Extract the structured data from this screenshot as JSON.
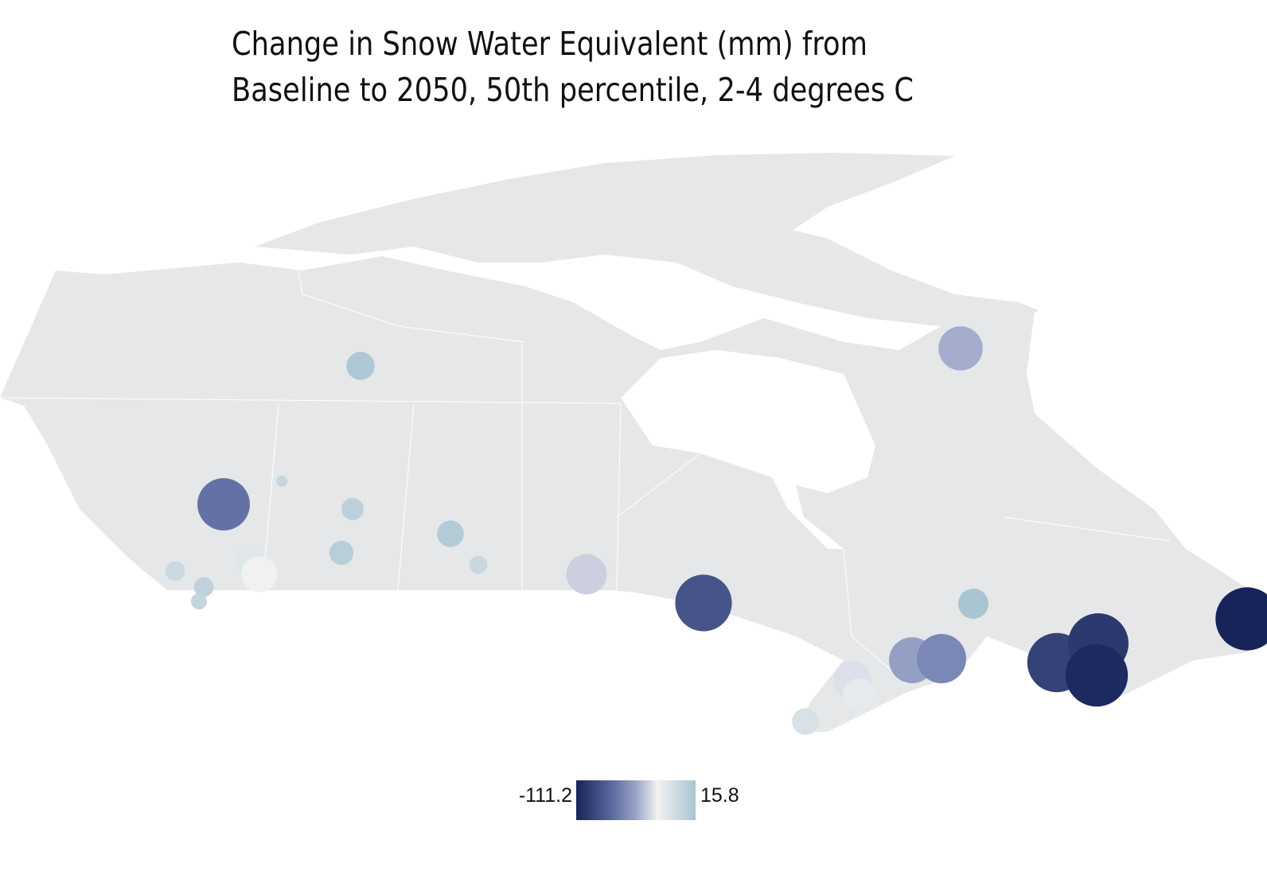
{
  "title": {
    "line1": "Change in Snow Water Equivalent (mm) from",
    "line2": "Baseline to 2050, 50th percentile, 2-4 degrees C"
  },
  "legend": {
    "min_label": "-111.2",
    "max_label": "15.8",
    "min": -111.2,
    "max": 15.8,
    "colors": [
      "#17245a",
      "#5b6aa0",
      "#9aa4c8",
      "#f2f2f2",
      "#a8c4d2"
    ]
  },
  "map": {
    "land_color": "#e6e7e8",
    "border_color": "#ffffff"
  },
  "stations": [
    {
      "value": 12
    },
    {
      "value": -45
    },
    {
      "value": -70
    },
    {
      "value": 0
    },
    {
      "value": 5
    },
    {
      "value": 10
    },
    {
      "value": 7
    },
    {
      "value": -2
    },
    {
      "value": -15
    },
    {
      "value": -25
    },
    {
      "value": -3
    },
    {
      "value": 3
    },
    {
      "value": 1
    },
    {
      "value": -35
    },
    {
      "value": -85
    },
    {
      "value": 15
    },
    {
      "value": -50
    },
    {
      "value": -60
    },
    {
      "value": -30
    },
    {
      "value": -18
    },
    {
      "value": -10
    },
    {
      "value": -95
    },
    {
      "value": -100
    },
    {
      "value": -108
    },
    {
      "value": -111.2
    }
  ]
}
